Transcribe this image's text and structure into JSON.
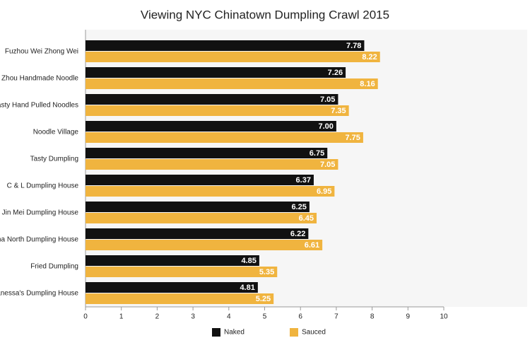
{
  "chart_data": {
    "type": "bar",
    "orientation": "horizontal",
    "title": "Viewing NYC Chinatown Dumpling Crawl 2015",
    "categories": [
      "Fuzhou Wei Zhong Wei",
      "Lam Zhou Handmade Noodle",
      "Tasty Hand Pulled Noodles",
      "Noodle Village",
      "Tasty Dumpling",
      "C & L Dumpling House",
      "Jin Mei Dumpling House",
      "China North Dumpling House",
      "Fried Dumpling",
      "Vanessa's Dumpling House"
    ],
    "series": [
      {
        "name": "Naked",
        "color": "#111111",
        "values": [
          7.78,
          7.26,
          7.05,
          7.0,
          6.75,
          6.37,
          6.25,
          6.22,
          4.85,
          4.81
        ],
        "value_labels": [
          "7.78",
          "7.26",
          "7.05",
          "7.00",
          "6.75",
          "6.37",
          "6.25",
          "6.22",
          "4.85",
          "4.81"
        ]
      },
      {
        "name": "Sauced",
        "color": "#f0b43f",
        "values": [
          8.22,
          8.16,
          7.35,
          7.75,
          7.05,
          6.95,
          6.45,
          6.61,
          5.35,
          5.25
        ],
        "value_labels": [
          "8.22",
          "8.16",
          "7.35",
          "7.75",
          "7.05",
          "6.95",
          "6.45",
          "6.61",
          "5.35",
          "5.25"
        ]
      }
    ],
    "xlim": [
      0,
      10
    ],
    "xticks": [
      0,
      1,
      2,
      3,
      4,
      5,
      6,
      7,
      8,
      9,
      10
    ],
    "grid": false,
    "legend": "bottom"
  }
}
